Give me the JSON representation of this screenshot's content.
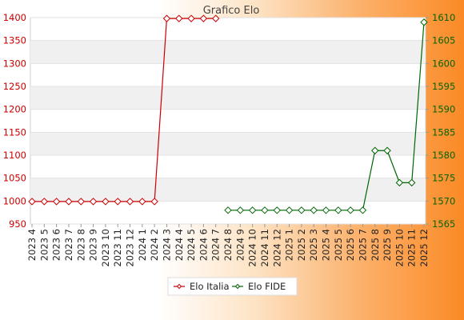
{
  "chart_data": {
    "type": "line",
    "title": "Grafico Elo",
    "x": [
      "2023 4",
      "2023 5",
      "2023 6",
      "2023 7",
      "2023 8",
      "2023 9",
      "2023 10",
      "2023 11",
      "2023 12",
      "2024 1",
      "2024 2",
      "2024 3",
      "2024 4",
      "2024 5",
      "2024 6",
      "2024 7",
      "2024 8",
      "2024 9",
      "2024 10",
      "2024 11",
      "2024 12",
      "2025 1",
      "2025 2",
      "2025 3",
      "2025 4",
      "2025 5",
      "2025 6",
      "2025 7",
      "2025 8",
      "2025 9",
      "2025 10",
      "2025 11",
      "2025 12"
    ],
    "series": [
      {
        "name": "Elo Italia",
        "axis": "left",
        "color": "#cc0000",
        "values": [
          999,
          999,
          999,
          999,
          999,
          999,
          999,
          999,
          999,
          999,
          999,
          1398,
          1398,
          1398,
          1398,
          1398,
          null,
          null,
          null,
          null,
          null,
          null,
          null,
          null,
          null,
          null,
          null,
          null,
          null,
          null,
          null,
          null,
          null
        ]
      },
      {
        "name": "Elo FIDE",
        "axis": "right",
        "color": "#006600",
        "values": [
          null,
          null,
          null,
          null,
          null,
          null,
          null,
          null,
          null,
          null,
          null,
          null,
          null,
          null,
          null,
          null,
          1568,
          1568,
          1568,
          1568,
          1568,
          1568,
          1568,
          1568,
          1568,
          1568,
          1568,
          1568,
          1581,
          1581,
          1574,
          1574,
          1609
        ]
      }
    ],
    "y_left": {
      "ylim": [
        950,
        1400
      ],
      "ticks": [
        950,
        1000,
        1050,
        1100,
        1150,
        1200,
        1250,
        1300,
        1350,
        1400
      ],
      "color": "#cc0000"
    },
    "y_right": {
      "ylim": [
        1565,
        1610
      ],
      "ticks": [
        1565,
        1570,
        1575,
        1580,
        1585,
        1590,
        1595,
        1600,
        1605,
        1610
      ],
      "color": "#006600"
    },
    "grid": "horizontal bands",
    "legend_position": "bottom-center"
  }
}
